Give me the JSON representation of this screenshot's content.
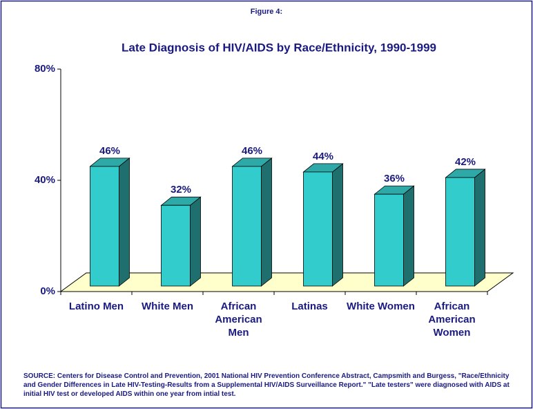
{
  "chart_data": {
    "type": "bar3d",
    "figure_label": "Figure 4:",
    "title": "Late Diagnosis of HIV/AIDS by Race/Ethnicity, 1990-1999",
    "categories": [
      "Latino Men",
      "White Men",
      "African American Men",
      "Latinas",
      "White Women",
      "African American Women"
    ],
    "values": [
      46,
      32,
      46,
      44,
      36,
      42
    ],
    "value_labels": [
      "46%",
      "32%",
      "46%",
      "44%",
      "36%",
      "42%"
    ],
    "color": "#33cccc",
    "ylim": [
      0,
      80
    ],
    "yticks": [
      {
        "value": 0,
        "label": "0%"
      },
      {
        "value": 40,
        "label": "40%"
      },
      {
        "value": 80,
        "label": "80%"
      }
    ],
    "source": "SOURCE: Centers for Disease Control and Prevention, 2001 National HIV Prevention Conference Abstract, Campsmith and Burgess, \"Race/Ethnicity and Gender Differences in Late HIV-Testing-Results from a Supplemental HIV/AIDS Surveillance Report.\"  \"Late testers\" were diagnosed with AIDS at initial HIV test or developed AIDS within one year from intial test."
  }
}
